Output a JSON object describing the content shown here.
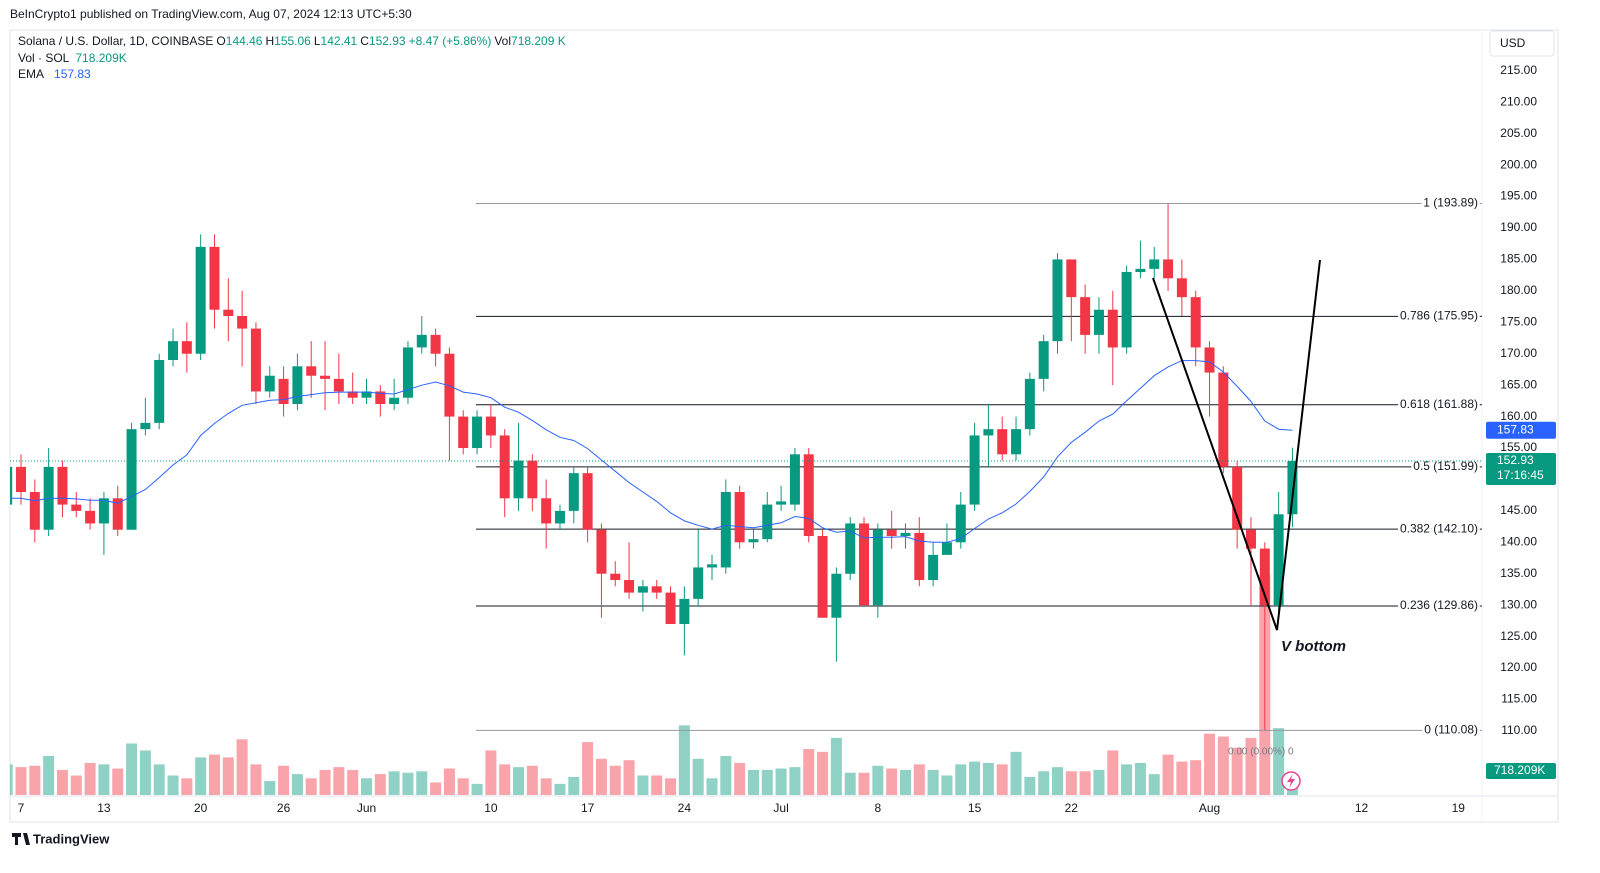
{
  "header": {
    "published": "BeInCrypto1 published on TradingView.com, Aug 07, 2024 12:13 UTC+5:30"
  },
  "chart_data": {
    "type": "candlestick",
    "title": "Solana / U.S. Dollar, 1D, COINBASE",
    "ohlc_labels": [
      "O",
      "H",
      "L",
      "C"
    ],
    "change_label": "+8.47 (+5.86%)",
    "volume_legend": {
      "label": "Vol",
      "value": "718.209 K"
    },
    "volume_pane": {
      "label": "Vol · SOL",
      "value": "718.209K"
    },
    "ema_label": "EMA",
    "currency": "USD",
    "countdown": "17:16:45",
    "up_color": "#089981",
    "down_color": "#f23645",
    "categories": [
      null,
      "7",
      null,
      null,
      null,
      null,
      null,
      "13",
      null,
      null,
      null,
      null,
      null,
      null,
      "20",
      null,
      null,
      null,
      null,
      null,
      "26",
      null,
      null,
      null,
      null,
      null,
      "Jun",
      null,
      null,
      null,
      null,
      null,
      null,
      null,
      null,
      "10",
      null,
      null,
      null,
      null,
      null,
      null,
      "17",
      null,
      null,
      null,
      null,
      null,
      null,
      "24",
      null,
      null,
      null,
      null,
      null,
      null,
      "Jul",
      null,
      null,
      null,
      null,
      null,
      null,
      "8",
      null,
      null,
      null,
      null,
      null,
      null,
      "15",
      null,
      null,
      null,
      null,
      null,
      null,
      "22",
      null,
      null,
      null,
      null,
      null,
      null,
      null,
      null,
      null,
      "Aug",
      null,
      null,
      null,
      null,
      null,
      null,
      null,
      null,
      null,
      null,
      "12",
      null,
      null,
      null,
      null,
      null,
      null,
      "19"
    ],
    "open": [
      146,
      152,
      148,
      142,
      152,
      146,
      145,
      143,
      147,
      142,
      158,
      159,
      169,
      172,
      170,
      187,
      177,
      176,
      174,
      164,
      166,
      162,
      168,
      166.5,
      166,
      164,
      163,
      164,
      162,
      163,
      171,
      173,
      170,
      160,
      155,
      160,
      157,
      147,
      153,
      147,
      143,
      145,
      151,
      142,
      135,
      134,
      132,
      133,
      132,
      127,
      131,
      136,
      136,
      148,
      140,
      140.5,
      146,
      146,
      154,
      141,
      128,
      135,
      143,
      130,
      142,
      141,
      141.5,
      134,
      138,
      140,
      146,
      157,
      158,
      154,
      158,
      166,
      172,
      185,
      179,
      173,
      177,
      171,
      183,
      183.5,
      185,
      182,
      179,
      171,
      167,
      152,
      142,
      139,
      130,
      144.46,
      null,
      null,
      null,
      null,
      null,
      null,
      null,
      null,
      null,
      null,
      null,
      null
    ],
    "high": [
      154,
      154,
      150,
      155,
      153,
      148,
      147,
      148,
      149,
      159,
      163,
      170,
      174,
      175,
      189,
      189,
      182,
      180,
      175,
      168,
      168,
      170,
      172,
      172,
      170,
      167,
      166,
      165,
      166,
      172,
      176,
      174,
      171,
      161,
      161,
      162,
      158,
      159,
      154,
      150,
      146,
      152,
      152,
      143,
      137,
      140,
      134,
      134,
      133,
      133,
      142,
      138,
      150,
      149,
      142,
      148,
      149,
      155,
      155,
      142,
      136,
      144,
      144,
      143,
      145,
      143,
      144,
      140,
      143,
      148,
      159,
      162,
      160,
      160,
      167,
      173,
      186,
      185,
      181,
      179,
      180,
      184,
      188,
      187,
      193.89,
      185,
      180,
      172,
      168,
      153,
      144,
      140,
      148,
      155.06,
      null,
      null,
      null,
      null,
      null,
      null,
      null,
      null,
      null,
      null,
      null,
      null
    ],
    "low": [
      145,
      146,
      140,
      141,
      144,
      144,
      142,
      138,
      141,
      142,
      157,
      158,
      168,
      167,
      169,
      174,
      172,
      168,
      162,
      163,
      160,
      161,
      163,
      161,
      162,
      162,
      162,
      160,
      161,
      162,
      170,
      168,
      153,
      154,
      154,
      155,
      144,
      145,
      145,
      139,
      142,
      143,
      140,
      128,
      133,
      131,
      129,
      131,
      127,
      122,
      130,
      134,
      135,
      139,
      139,
      140,
      145,
      145,
      140,
      128,
      121,
      134,
      130,
      128,
      139,
      139,
      133,
      133,
      138,
      139,
      145,
      152,
      153,
      153,
      157,
      164,
      170,
      172,
      170,
      170,
      165,
      170,
      182,
      182,
      180,
      176,
      168,
      160,
      151,
      139,
      130,
      110.08,
      129,
      142.41,
      null,
      null,
      null,
      null,
      null,
      null,
      null,
      null,
      null,
      null,
      null,
      null
    ],
    "close": [
      152,
      148,
      142,
      152,
      146,
      145,
      143,
      147,
      142,
      158,
      159,
      169,
      172,
      170,
      187,
      177,
      176,
      174,
      164,
      166.5,
      162,
      168,
      166.5,
      166,
      164,
      163,
      164,
      162,
      163,
      171,
      173,
      170,
      160,
      155,
      160,
      157,
      147,
      153,
      147,
      143,
      145,
      151,
      142,
      135,
      134,
      132,
      133,
      132,
      127,
      131,
      136,
      136.5,
      148,
      140,
      140.5,
      146,
      146.5,
      154,
      141,
      128,
      135,
      143,
      130,
      142,
      141,
      141.5,
      134,
      138,
      140,
      146,
      157,
      158,
      154,
      158,
      166,
      172,
      185,
      179,
      173,
      177,
      171,
      183,
      183.5,
      185,
      182,
      179,
      171,
      167,
      152,
      142,
      139,
      130,
      144.46,
      152.93,
      null,
      null,
      null,
      null,
      null,
      null,
      null,
      null,
      null,
      null,
      null,
      null
    ],
    "volume": [
      1100000,
      1000000,
      1050000,
      1400000,
      900000,
      700000,
      1150000,
      1100000,
      950000,
      1850000,
      1600000,
      1100000,
      700000,
      600000,
      1350000,
      1450000,
      1350000,
      2000000,
      1100000,
      500000,
      1050000,
      750000,
      600000,
      900000,
      1000000,
      900000,
      600000,
      750000,
      850000,
      800000,
      850000,
      450000,
      950000,
      600000,
      400000,
      1600000,
      1100000,
      1000000,
      1050000,
      600000,
      400000,
      650000,
      1900000,
      1300000,
      1050000,
      1250000,
      700000,
      700000,
      600000,
      2500000,
      1300000,
      600000,
      1400000,
      1150000,
      900000,
      900000,
      950000,
      1000000,
      1650000,
      1550000,
      2050000,
      800000,
      800000,
      1050000,
      950000,
      900000,
      1100000,
      900000,
      700000,
      1100000,
      1200000,
      1150000,
      1100000,
      1550000,
      650000,
      850000,
      1000000,
      850000,
      850000,
      900000,
      1600000,
      1100000,
      1150000,
      750000,
      1450000,
      1200000,
      1250000,
      2200000,
      2100000,
      1700000,
      2050000,
      7900000,
      2400000,
      718209,
      null,
      null,
      null,
      null,
      null,
      null,
      null,
      null,
      null,
      null,
      null,
      null
    ],
    "ema": {
      "color": "#2962ff",
      "values": [
        147,
        147,
        146.6,
        147,
        147,
        146.9,
        146.7,
        146.7,
        146.2,
        147.3,
        148.4,
        150.3,
        152.3,
        153.9,
        157,
        158.9,
        160.5,
        161.8,
        162.2,
        162.6,
        162.7,
        163.2,
        163.5,
        163.8,
        163.9,
        163.9,
        163.9,
        163.7,
        163.6,
        164.3,
        165,
        165.5,
        164.9,
        163.9,
        163.6,
        163,
        161.5,
        160.7,
        159.4,
        157.9,
        156.7,
        156.2,
        154.9,
        153.1,
        151.3,
        149.5,
        148,
        146.5,
        144.7,
        143.4,
        142.7,
        142.1,
        142.7,
        142.5,
        142.3,
        142.7,
        143.1,
        144.1,
        143.8,
        142.3,
        141.6,
        141.8,
        140.7,
        140.8,
        140.8,
        140.9,
        140.2,
        140,
        140,
        140.6,
        142.2,
        143.7,
        144.7,
        146.1,
        148.1,
        150.4,
        153.6,
        155.9,
        157.5,
        159.3,
        160.4,
        162.5,
        164.5,
        166.5,
        167.9,
        168.9,
        168.9,
        168.7,
        167.1,
        164.8,
        162.4,
        159.3,
        158,
        157.83,
        null,
        null,
        null,
        null,
        null,
        null,
        null,
        null,
        null,
        null,
        null,
        null
      ]
    },
    "ylim": [
      99.8,
      221.5
    ],
    "yticks": [
      {
        "value": 110,
        "label": "110.00"
      },
      {
        "value": 115,
        "label": "115.00"
      },
      {
        "value": 120,
        "label": "120.00"
      },
      {
        "value": 125,
        "label": "125.00"
      },
      {
        "value": 130,
        "label": "130.00"
      },
      {
        "value": 135,
        "label": "135.00"
      },
      {
        "value": 140,
        "label": "140.00"
      },
      {
        "value": 145,
        "label": "145.00"
      },
      {
        "value": 150,
        "label": "150.00"
      },
      {
        "value": 155,
        "label": "155.00"
      },
      {
        "value": 160,
        "label": "160.00"
      },
      {
        "value": 165,
        "label": "165.00"
      },
      {
        "value": 170,
        "label": "170.00"
      },
      {
        "value": 175,
        "label": "175.00"
      },
      {
        "value": 180,
        "label": "180.00"
      },
      {
        "value": 185,
        "label": "185.00"
      },
      {
        "value": 190,
        "label": "190.00"
      },
      {
        "value": 195,
        "label": "195.00"
      },
      {
        "value": 200,
        "label": "200.00"
      },
      {
        "value": 205,
        "label": "205.00"
      },
      {
        "value": 210,
        "label": "210.00"
      },
      {
        "value": 215,
        "label": "215.00"
      }
    ],
    "fib_levels": [
      {
        "value": 193.89,
        "label": "1 (193.89)",
        "color": "#9598a1"
      },
      {
        "value": 175.95,
        "label": "0.786 (175.95)",
        "color": "#131722"
      },
      {
        "value": 161.88,
        "label": "0.618 (161.88)",
        "color": "#131722"
      },
      {
        "value": 151.99,
        "label": "0.5 (151.99)",
        "color": "#131722"
      },
      {
        "value": 142.1,
        "label": "0.382 (142.10)",
        "color": "#131722"
      },
      {
        "value": 129.86,
        "label": "0.236 (129.86)",
        "color": "#131722"
      },
      {
        "value": 110.08,
        "label": "0 (110.08)",
        "color": "#9598a1"
      }
    ],
    "annotations": {
      "pattern": "V bottom",
      "fib_zero": "0.00 (0.00%) 0"
    }
  },
  "footer": {
    "brand": "TradingView"
  }
}
